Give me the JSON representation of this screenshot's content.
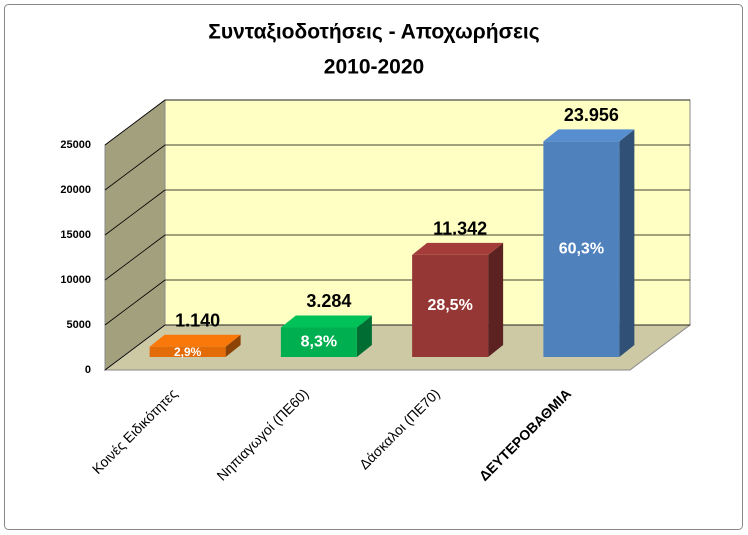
{
  "chart_data": {
    "type": "bar3d",
    "title": "Συνταξιοδοτήσεις - Αποχωρήσεις",
    "subtitle": "2010-2020",
    "categories": [
      "Κοινές Ειδικότητες",
      "Νηπιαγωγοί (ΠΕ60)",
      "Δάσκαλοι (ΠΕ70)",
      "ΔΕΥΤΕΡΟΒΑΘΜΙΑ"
    ],
    "values": [
      1140,
      3284,
      11342,
      23956
    ],
    "value_labels": [
      "1.140",
      "3.284",
      "11.342",
      "23.956"
    ],
    "shares": {
      "values": [
        2.9,
        8.3,
        28.5,
        60.3
      ],
      "value_labels": [
        "2,9%",
        "8,3%",
        "28,5%",
        "60,3%"
      ]
    },
    "colors": [
      "#e36c09",
      "#00b050",
      "#953735",
      "#4f81bd"
    ],
    "ylim": [
      0,
      25000
    ],
    "yticks": [
      0,
      5000,
      10000,
      15000,
      20000,
      25000
    ],
    "grid": true
  }
}
